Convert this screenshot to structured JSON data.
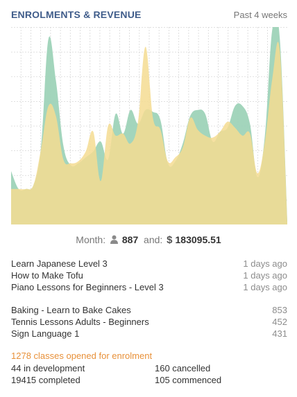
{
  "header": {
    "title": "ENROLMENTS & REVENUE",
    "period": "Past 4 weeks"
  },
  "chart_data": {
    "type": "area",
    "series": [
      {
        "color": "#9ed3b8",
        "values": [
          0.27,
          0.18,
          0.18,
          0.2,
          0.39,
          0.94,
          0.73,
          0.4,
          0.3,
          0.31,
          0.34,
          0.37,
          0.42,
          0.33,
          0.56,
          0.46,
          0.58,
          0.51,
          0.58,
          0.57,
          0.53,
          0.31,
          0.32,
          0.41,
          0.55,
          0.58,
          0.56,
          0.42,
          0.47,
          0.49,
          0.6,
          0.6,
          0.51,
          0.24,
          0.45,
          0.99,
          0.94,
          0.02
        ]
      },
      {
        "color": "#f5dc92",
        "values": [
          0.18,
          0.18,
          0.18,
          0.2,
          0.38,
          0.6,
          0.55,
          0.33,
          0.31,
          0.32,
          0.37,
          0.47,
          0.22,
          0.5,
          0.45,
          0.46,
          0.41,
          0.52,
          0.9,
          0.54,
          0.48,
          0.32,
          0.34,
          0.39,
          0.54,
          0.48,
          0.45,
          0.44,
          0.47,
          0.52,
          0.49,
          0.45,
          0.46,
          0.26,
          0.42,
          0.74,
          0.88,
          0.01
        ]
      }
    ],
    "grid": true
  },
  "totals": {
    "month_label": "Month:",
    "enrolments": "887",
    "and_label": "and:",
    "revenue": "183095.51"
  },
  "recent": [
    {
      "name": "Learn Japanese Level 3",
      "time": "1 days ago"
    },
    {
      "name": "How to Make Tofu",
      "time": "1 days ago"
    },
    {
      "name": "Piano Lessons for Beginners - Level 3",
      "time": "1 days ago"
    }
  ],
  "top": [
    {
      "name": "Baking - Learn to Bake Cakes",
      "count": "853"
    },
    {
      "name": "Tennis Lessons Adults - Beginners",
      "count": "452"
    },
    {
      "name": "Sign Language 1",
      "count": "431"
    }
  ],
  "stats": {
    "headline": "1278 classes opened for enrolment",
    "development": "44 in development",
    "cancelled": "160 cancelled",
    "completed": "19415 completed",
    "commenced": "105 commenced"
  }
}
